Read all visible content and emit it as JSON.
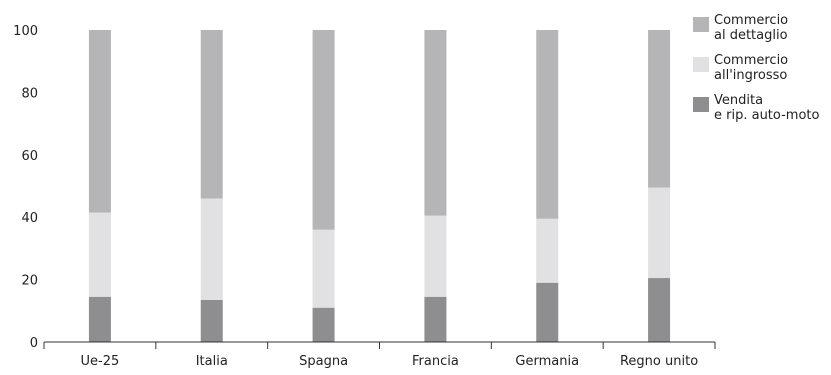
{
  "chart_data": {
    "type": "bar",
    "stacked": true,
    "categories": [
      "Ue-25",
      "Italia",
      "Spagna",
      "Francia",
      "Germania",
      "Regno unito"
    ],
    "series": [
      {
        "name": "Vendita\ne rip. auto-moto",
        "legend_lines": [
          "Vendita",
          "e rip. auto-moto"
        ],
        "values": [
          14.5,
          13.5,
          11,
          14.5,
          19,
          20.5
        ],
        "color": "#8e8e90"
      },
      {
        "name": "Commercio\nall'ingrosso",
        "legend_lines": [
          "Commercio",
          "all'ingrosso"
        ],
        "values": [
          27,
          32.5,
          25,
          26,
          20.5,
          29
        ],
        "color": "#e1e1e3"
      },
      {
        "name": "Commercio\nal dettaglio",
        "legend_lines": [
          "Commercio",
          "al dettaglio"
        ],
        "values": [
          58.5,
          54,
          64,
          59.5,
          60.5,
          50.5
        ],
        "color": "#b5b5b7"
      }
    ],
    "legend_order": [
      2,
      1,
      0
    ],
    "yticks": [
      "0",
      "20",
      "40",
      "60",
      "80",
      "100"
    ],
    "ylim": [
      0,
      100
    ],
    "grid": false,
    "legend_position": "top-right",
    "title": "",
    "xlabel": "",
    "ylabel": ""
  }
}
